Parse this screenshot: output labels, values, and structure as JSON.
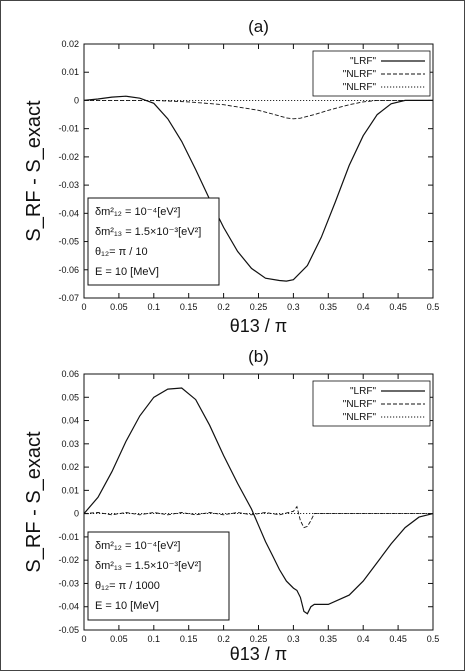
{
  "figure": {
    "ylabel": "S_RF - S_exact"
  },
  "chart_data": [
    {
      "type": "line",
      "panel_label": "(a)",
      "xlabel": "θ13 / π",
      "ylabel": "S_RF - S_exact",
      "xlim": [
        0,
        0.5
      ],
      "ylim": [
        -0.07,
        0.02
      ],
      "xticks": [
        0,
        0.05,
        0.1,
        0.15,
        0.2,
        0.25,
        0.3,
        0.35,
        0.4,
        0.45,
        0.5
      ],
      "xtick_labels": [
        "0",
        "0.05",
        "0.1",
        "0.15",
        "0.2",
        "0.25",
        "0.3",
        "0.35",
        "0.4",
        "0.45",
        "0.5"
      ],
      "yticks": [
        0.02,
        0.01,
        0,
        -0.01,
        -0.02,
        -0.03,
        -0.04,
        -0.05,
        -0.06,
        -0.07
      ],
      "ytick_labels": [
        "0.02",
        "0.01",
        "0",
        "-0.01",
        "-0.02",
        "-0.03",
        "-0.04",
        "-0.05",
        "-0.06",
        "-0.07"
      ],
      "grid": false,
      "legend_position": "top-right",
      "params": [
        "δm²₁₂ = 10⁻⁴[eV²]",
        "δm²₁₃ = 1.5×10⁻³[eV²]",
        "θ₁₂= π / 10",
        "E = 10 [MeV]"
      ],
      "series": [
        {
          "name": "\"LRF\"",
          "dash": "solid",
          "x": [
            0,
            0.02,
            0.04,
            0.06,
            0.08,
            0.1,
            0.12,
            0.14,
            0.16,
            0.18,
            0.2,
            0.22,
            0.24,
            0.26,
            0.28,
            0.29,
            0.3,
            0.32,
            0.34,
            0.36,
            0.38,
            0.4,
            0.42,
            0.44,
            0.46,
            0.48,
            0.5
          ],
          "values": [
            0,
            0.0005,
            0.0012,
            0.0015,
            0.0008,
            -0.001,
            -0.0065,
            -0.0145,
            -0.0245,
            -0.035,
            -0.045,
            -0.0535,
            -0.0595,
            -0.063,
            -0.0638,
            -0.064,
            -0.0635,
            -0.0585,
            -0.0485,
            -0.036,
            -0.023,
            -0.0125,
            -0.005,
            -0.0012,
            0,
            0,
            0
          ]
        },
        {
          "name": "\"NLRF\" ",
          "dash": "dashed",
          "x": [
            0,
            0.1,
            0.15,
            0.2,
            0.25,
            0.27,
            0.29,
            0.3,
            0.31,
            0.33,
            0.35,
            0.38,
            0.4,
            0.42,
            0.45,
            0.5
          ],
          "values": [
            0,
            0,
            -0.0005,
            -0.0015,
            -0.0035,
            -0.0048,
            -0.0062,
            -0.0065,
            -0.0063,
            -0.005,
            -0.0035,
            -0.0015,
            -0.0005,
            0,
            0,
            0
          ]
        },
        {
          "name": "\"NLRF\"",
          "dash": "dotted",
          "x": [
            0,
            0.5
          ],
          "values": [
            0,
            0
          ]
        }
      ]
    },
    {
      "type": "line",
      "panel_label": "(b)",
      "xlabel": "θ13 / π",
      "ylabel": "S_RF - S_exact",
      "xlim": [
        0,
        0.5
      ],
      "ylim": [
        -0.05,
        0.06
      ],
      "xticks": [
        0,
        0.05,
        0.1,
        0.15,
        0.2,
        0.25,
        0.3,
        0.35,
        0.4,
        0.45,
        0.5
      ],
      "xtick_labels": [
        "0",
        "0.05",
        "0.1",
        "0.15",
        "0.2",
        "0.25",
        "0.3",
        "0.35",
        "0.4",
        "0.45",
        "0.5"
      ],
      "yticks": [
        0.06,
        0.05,
        0.04,
        0.03,
        0.02,
        0.01,
        0,
        -0.01,
        -0.02,
        -0.03,
        -0.04,
        -0.05
      ],
      "ytick_labels": [
        "0.06",
        "0.05",
        "0.04",
        "0.03",
        "0.02",
        "0.01",
        "0",
        "-0.01",
        "-0.02",
        "-0.03",
        "-0.04",
        "-0.05"
      ],
      "grid": false,
      "legend_position": "top-right",
      "params": [
        "δm²₁₂ = 10⁻⁴[eV²]",
        "δm²₁₃ = 1.5×10⁻³[eV²]",
        "θ₁₂= π / 1000",
        "E = 10 [MeV]"
      ],
      "series": [
        {
          "name": "\"LRF\"",
          "dash": "solid",
          "x": [
            0,
            0.02,
            0.04,
            0.06,
            0.08,
            0.1,
            0.12,
            0.14,
            0.16,
            0.18,
            0.2,
            0.22,
            0.24,
            0.25,
            0.26,
            0.27,
            0.28,
            0.29,
            0.3,
            0.305,
            0.31,
            0.315,
            0.32,
            0.325,
            0.33,
            0.35,
            0.38,
            0.4,
            0.42,
            0.44,
            0.46,
            0.48,
            0.5
          ],
          "values": [
            0,
            0.007,
            0.018,
            0.031,
            0.042,
            0.05,
            0.0535,
            0.054,
            0.049,
            0.038,
            0.025,
            0.013,
            0.002,
            -0.005,
            -0.012,
            -0.018,
            -0.024,
            -0.029,
            -0.032,
            -0.033,
            -0.036,
            -0.042,
            -0.043,
            -0.04,
            -0.039,
            -0.039,
            -0.035,
            -0.029,
            -0.021,
            -0.013,
            -0.006,
            -0.0015,
            0
          ]
        },
        {
          "name": "\"NLRF\" ",
          "dash": "dashed",
          "x": [
            0,
            0.02,
            0.04,
            0.06,
            0.08,
            0.1,
            0.12,
            0.14,
            0.16,
            0.18,
            0.2,
            0.22,
            0.24,
            0.26,
            0.28,
            0.3,
            0.305,
            0.31,
            0.315,
            0.32,
            0.325,
            0.33,
            0.35,
            0.4,
            0.45,
            0.5
          ],
          "values": [
            0,
            0.0005,
            -0.0005,
            0.0005,
            -0.0005,
            0.0005,
            -0.0005,
            0.0005,
            -0.0005,
            0.0005,
            -0.0005,
            0.0005,
            -0.0005,
            0.0005,
            -0.0005,
            0.001,
            0.003,
            -0.003,
            -0.006,
            -0.0055,
            -0.003,
            0,
            0,
            0,
            0,
            0
          ]
        },
        {
          "name": "\"NLRF\"",
          "dash": "dotted",
          "x": [
            0,
            0.5
          ],
          "values": [
            0,
            0
          ]
        }
      ]
    }
  ]
}
